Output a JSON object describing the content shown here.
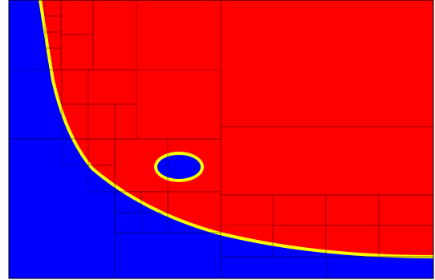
{
  "colors": {
    "background": "#ffffff",
    "frame": "#000000",
    "inside_region": "#ff0000",
    "outside_region": "#0000ff",
    "interface_band": "#ffff00",
    "cell_grid": "#000000"
  },
  "regions": [
    {
      "name": "inside-region",
      "color_key": "inside_region"
    },
    {
      "name": "outside-region",
      "color_key": "outside_region"
    },
    {
      "name": "interface-band",
      "color_key": "interface_band"
    },
    {
      "name": "hole-region",
      "color_key": "outside_region"
    }
  ]
}
